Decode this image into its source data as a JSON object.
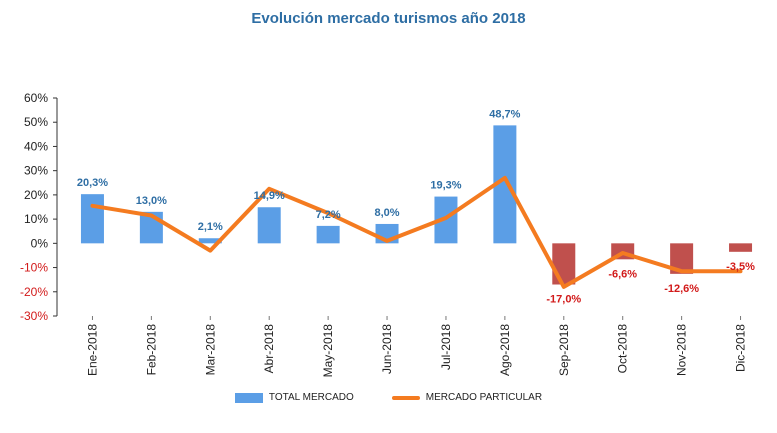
{
  "chart_data": {
    "type": "bar",
    "title": "Evolución mercado turismos año 2018",
    "categories": [
      "Ene-2018",
      "Feb-2018",
      "Mar-2018",
      "Abr-2018",
      "May-2018",
      "Jun-2018",
      "Jul-2018",
      "Ago-2018",
      "Sep-2018",
      "Oct-2018",
      "Nov-2018",
      "Dic-2018"
    ],
    "series": [
      {
        "name": "TOTAL MERCADO",
        "kind": "bar",
        "values": [
          20.3,
          13.0,
          2.1,
          14.9,
          7.2,
          8.0,
          19.3,
          48.7,
          -17.0,
          -6.6,
          -12.6,
          -3.5
        ],
        "labels": [
          "20,3%",
          "13,0%",
          "2,1%",
          "14,9%",
          "7,2%",
          "8,0%",
          "19,3%",
          "48,7%",
          "-17,0%",
          "-6,6%",
          "-12,6%",
          "-3,5%"
        ],
        "color_positive": "#5b9ee6",
        "color_negative": "#c0504d"
      },
      {
        "name": "MERCADO PARTICULAR",
        "kind": "line",
        "values": [
          15.5,
          11.5,
          -3.0,
          22.5,
          12.5,
          1.0,
          10.5,
          27.0,
          -18.0,
          -4.0,
          -11.5,
          -11.5
        ],
        "color": "#f47b20"
      }
    ],
    "y_ticks": [
      "60%",
      "50%",
      "40%",
      "30%",
      "20%",
      "10%",
      "0%",
      "-10%",
      "-20%",
      "-30%"
    ],
    "ylim": [
      -30,
      60
    ],
    "xlabel": "",
    "ylabel": "",
    "grid": false,
    "legend": "bottom",
    "label_colors": {
      "positive": "#2e6ea4",
      "negative": "#d21a1a"
    }
  }
}
